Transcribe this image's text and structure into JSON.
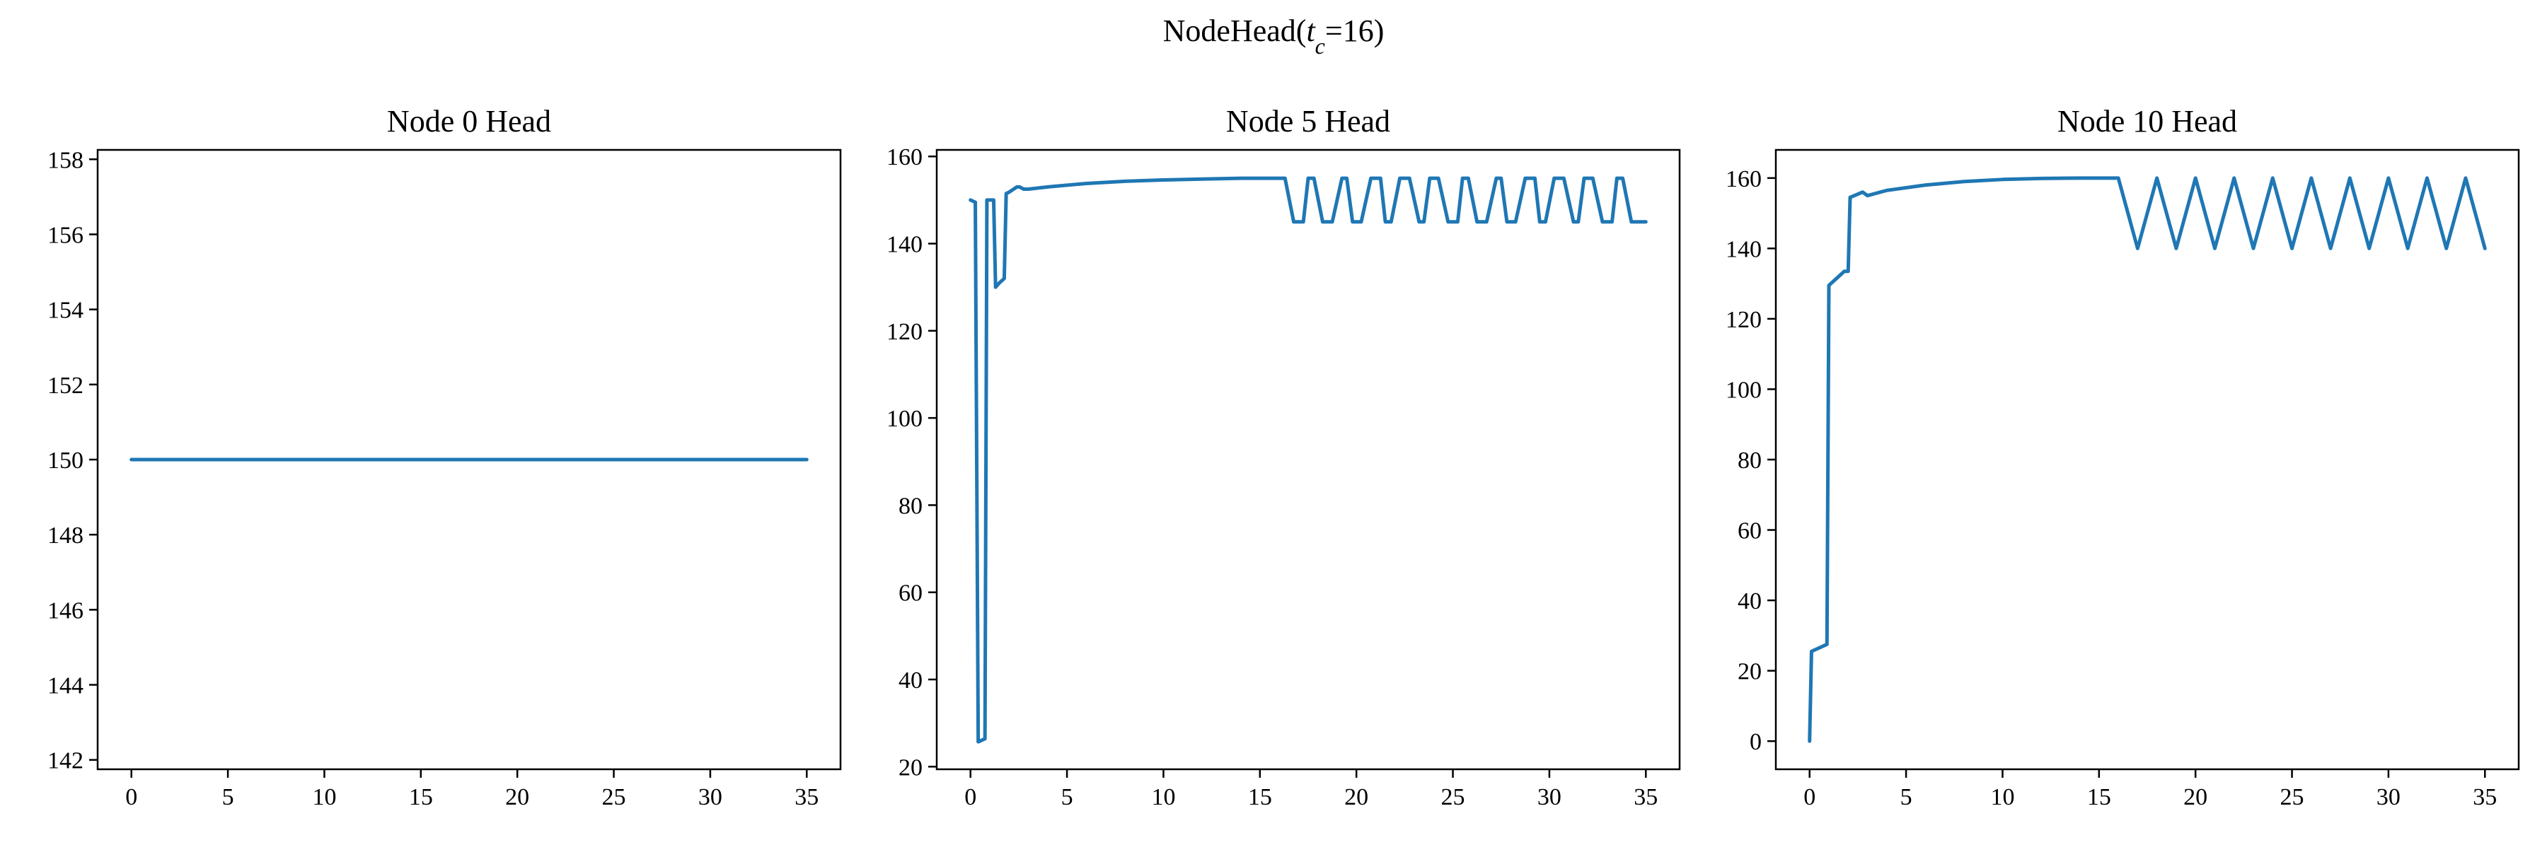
{
  "figure": {
    "suptitle_prefix": "NodeHead(",
    "suptitle_var": "t",
    "suptitle_sub": "c",
    "suptitle_suffix": "=16)"
  },
  "colors": {
    "line": "#1f77b4",
    "axes": "#000000",
    "background": "#ffffff"
  },
  "chart_data": [
    {
      "type": "line",
      "title": "Node 0 Head",
      "xlabel": "",
      "ylabel": "",
      "xlim": [
        -1.75,
        36.75
      ],
      "ylim": [
        141.75,
        158.25
      ],
      "xticks": [
        0,
        5,
        10,
        15,
        20,
        25,
        30,
        35
      ],
      "yticks": [
        142,
        144,
        146,
        148,
        150,
        152,
        154,
        156,
        158
      ],
      "grid": false,
      "x": [
        0,
        35
      ],
      "y": [
        150,
        150
      ]
    },
    {
      "type": "line",
      "title": "Node 5 Head",
      "xlabel": "",
      "ylabel": "",
      "xlim": [
        -1.75,
        36.75
      ],
      "ylim": [
        19.4,
        161.5
      ],
      "xticks": [
        0,
        5,
        10,
        15,
        20,
        25,
        30,
        35
      ],
      "yticks": [
        20,
        40,
        60,
        80,
        100,
        120,
        140,
        160
      ],
      "grid": false,
      "x": [
        0,
        0.25,
        0.4,
        0.75,
        0.85,
        1.0,
        1.2,
        1.3,
        1.5,
        1.75,
        1.85,
        2.0,
        2.4,
        2.55,
        2.75,
        3,
        4,
        6,
        8,
        10,
        12,
        14,
        16,
        16.3,
        16.75,
        17.25,
        17.5,
        17.8,
        18.25,
        18.75,
        19.25,
        19.5,
        19.8,
        20.25,
        20.75,
        21.25,
        21.5,
        21.8,
        22.25,
        22.75,
        23.25,
        23.5,
        23.8,
        24.25,
        24.75,
        25.25,
        25.5,
        25.8,
        26.25,
        26.75,
        27.25,
        27.5,
        27.8,
        28.25,
        28.75,
        29.25,
        29.5,
        29.8,
        30.25,
        30.75,
        31.25,
        31.5,
        31.8,
        32.25,
        32.75,
        33.25,
        33.5,
        33.8,
        34.25,
        34.75,
        35
      ],
      "y": [
        150,
        149.5,
        25.7,
        26.4,
        150,
        150,
        150,
        130,
        131,
        132,
        151.5,
        151.8,
        153,
        153,
        152.5,
        152.5,
        153,
        153.8,
        154.3,
        154.6,
        154.8,
        155,
        155,
        155,
        145,
        145,
        155,
        155,
        145,
        145,
        155,
        155,
        145,
        145,
        155,
        155,
        145,
        145,
        155,
        155,
        145,
        145,
        155,
        155,
        145,
        145,
        155,
        155,
        145,
        145,
        155,
        155,
        145,
        145,
        155,
        155,
        145,
        145,
        155,
        155,
        145,
        145,
        155,
        155,
        145,
        145,
        155,
        155,
        145,
        145,
        145
      ]
    },
    {
      "type": "line",
      "title": "Node 10 Head",
      "xlabel": "",
      "ylabel": "",
      "xlim": [
        -1.75,
        36.75
      ],
      "ylim": [
        -8,
        168
      ],
      "xticks": [
        0,
        5,
        10,
        15,
        20,
        25,
        30,
        35
      ],
      "yticks": [
        0,
        20,
        40,
        60,
        80,
        100,
        120,
        140,
        160
      ],
      "grid": false,
      "x": [
        0,
        0.1,
        0.9,
        1.0,
        1.8,
        2.0,
        2.1,
        2.75,
        3.0,
        4,
        6,
        8,
        10,
        12,
        14,
        16,
        17,
        18,
        19,
        20,
        21,
        22,
        23,
        24,
        25,
        26,
        27,
        28,
        29,
        30,
        31,
        32,
        33,
        34,
        35
      ],
      "y": [
        0,
        25.5,
        27.5,
        129.5,
        133.5,
        133.5,
        154.5,
        156,
        155,
        156.5,
        158,
        159,
        159.6,
        159.9,
        160,
        160,
        140,
        160,
        140,
        160,
        140,
        160,
        140,
        160,
        140,
        160,
        140,
        160,
        140,
        160,
        140,
        160,
        140,
        160,
        140
      ]
    }
  ]
}
